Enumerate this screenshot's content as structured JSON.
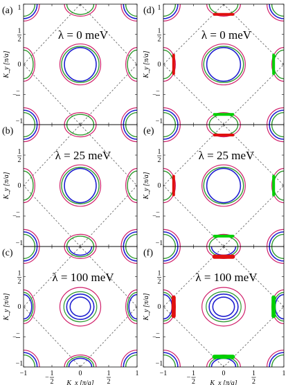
{
  "figure": {
    "panels": [
      {
        "tag": "(a)",
        "lambda_text": "λ = 0 meV"
      },
      {
        "tag": "(b)",
        "lambda_text": "λ = 25 meV"
      },
      {
        "tag": "(c)",
        "lambda_text": "λ = 100 meV"
      },
      {
        "tag": "(d)",
        "lambda_text": "λ = 0 meV"
      },
      {
        "tag": "(e)",
        "lambda_text": "λ = 25 meV"
      },
      {
        "tag": "(f)",
        "lambda_text": "λ = 100 meV"
      }
    ],
    "y_axis_label": "K_y [π/a]",
    "x_axis_label": "K_x [π/a]",
    "tick_labels": [
      "−1",
      "−1/2",
      "0",
      "1/2",
      "1"
    ]
  },
  "colors": {
    "band_1": "#1f1fd0",
    "band_2": "#2e9a2e",
    "band_3": "#d01f6a",
    "weight": "#e01010",
    "weight_green": "#00d000",
    "zone": "#666666"
  }
}
